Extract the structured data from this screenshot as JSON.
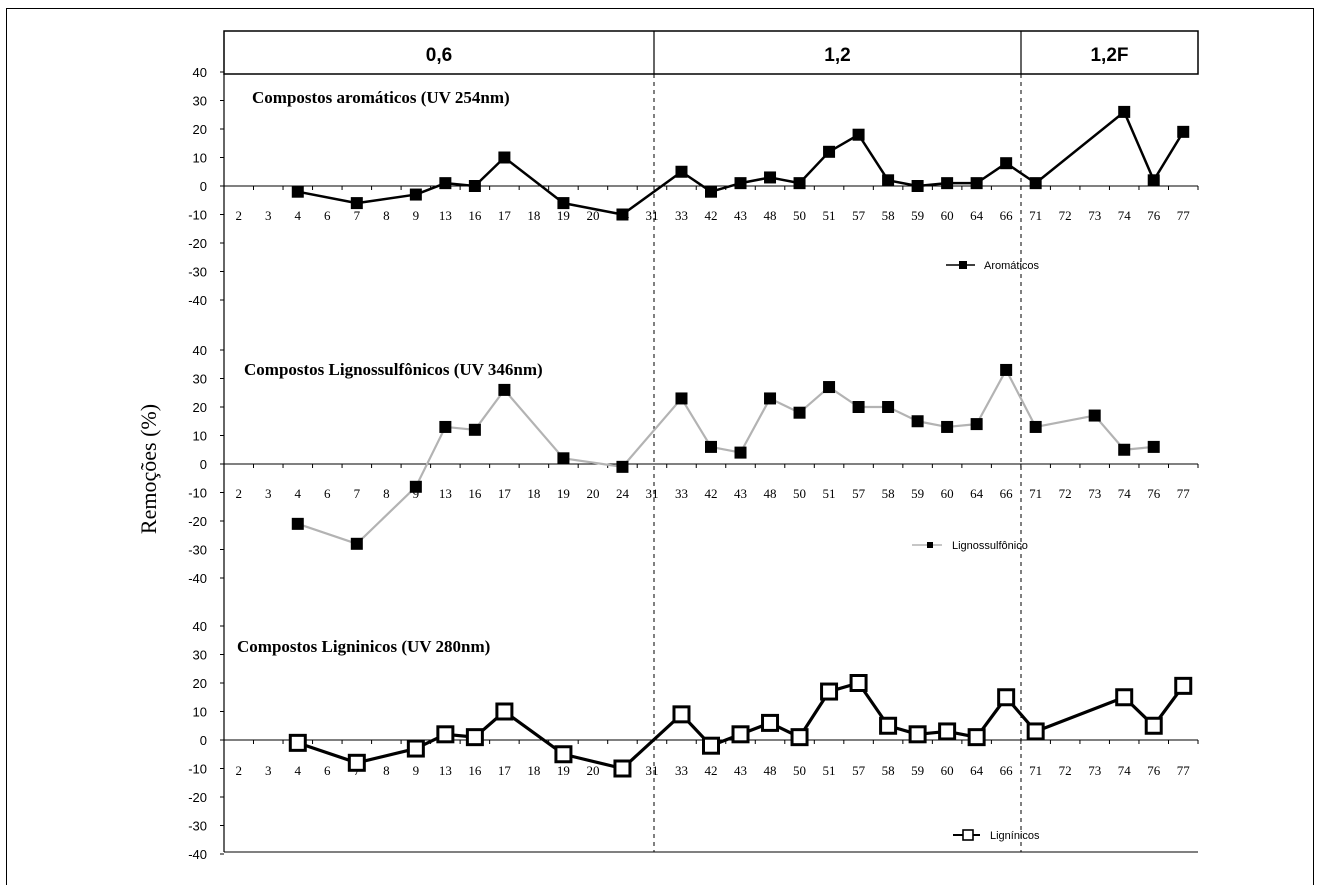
{
  "chart_data": {
    "type": "line",
    "ylabel": "Remoções (%)",
    "phases": [
      "0,6",
      "1,2",
      "1,2F"
    ],
    "categories": [
      "2",
      "3",
      "4",
      "6",
      "7",
      "8",
      "9",
      "13",
      "16",
      "17",
      "18",
      "19",
      "20",
      "24",
      "31",
      "33",
      "42",
      "43",
      "48",
      "50",
      "51",
      "57",
      "58",
      "59",
      "60",
      "64",
      "66",
      "71",
      "72",
      "73",
      "74",
      "76",
      "77"
    ],
    "panels": [
      {
        "title": "Compostos aromáticos (UV 254nm)",
        "ylim": [
          -40,
          40
        ],
        "yticks": [
          40,
          30,
          20,
          10,
          0,
          -10,
          -20,
          -30,
          -40
        ],
        "x_categories": [
          "2",
          "3",
          "4",
          "6",
          "7",
          "8",
          "9",
          "13",
          "16",
          "17",
          "18",
          "19",
          "20",
          "24",
          "31",
          "33",
          "42",
          "43",
          "48",
          "50",
          "51",
          "57",
          "58",
          "59",
          "60",
          "64",
          "66",
          "71",
          "72",
          "73",
          "74",
          "76",
          "77"
        ],
        "series": [
          {
            "name": "Aromáticos",
            "color": "#000000",
            "marker": "filled-square",
            "points": [
              {
                "x": "4",
                "y": -2
              },
              {
                "x": "7",
                "y": -6
              },
              {
                "x": "9",
                "y": -3
              },
              {
                "x": "13",
                "y": 1
              },
              {
                "x": "16",
                "y": 0
              },
              {
                "x": "17",
                "y": 10
              },
              {
                "x": "19",
                "y": -6
              },
              {
                "x": "24",
                "y": -10
              },
              {
                "x": "33",
                "y": 5
              },
              {
                "x": "42",
                "y": -2
              },
              {
                "x": "43",
                "y": 1
              },
              {
                "x": "48",
                "y": 3
              },
              {
                "x": "50",
                "y": 1
              },
              {
                "x": "51",
                "y": 12
              },
              {
                "x": "57",
                "y": 18
              },
              {
                "x": "58",
                "y": 2
              },
              {
                "x": "59",
                "y": 0
              },
              {
                "x": "60",
                "y": 1
              },
              {
                "x": "64",
                "y": 1
              },
              {
                "x": "66",
                "y": 8
              },
              {
                "x": "71",
                "y": 1
              },
              {
                "x": "74",
                "y": 26
              },
              {
                "x": "76",
                "y": 2
              },
              {
                "x": "77",
                "y": 19
              }
            ]
          }
        ]
      },
      {
        "title": "Compostos Lignossulfônicos (UV 346nm)",
        "ylim": [
          -40,
          40
        ],
        "yticks": [
          40,
          30,
          20,
          10,
          0,
          -10,
          -20,
          -30,
          -40
        ],
        "x_categories": [
          "2",
          "3",
          "4",
          "6",
          "7",
          "8",
          "9",
          "13",
          "16",
          "17",
          "18",
          "19",
          "20",
          "24",
          "31",
          "33",
          "42",
          "43",
          "48",
          "50",
          "51",
          "57",
          "58",
          "59",
          "60",
          "64",
          "66",
          "71",
          "72",
          "73",
          "74",
          "76",
          "77"
        ],
        "series": [
          {
            "name": "Lignossulfônico",
            "color": "#b3b3b3",
            "marker": "filled-square",
            "points": [
              {
                "x": "4",
                "y": -21
              },
              {
                "x": "7",
                "y": -28
              },
              {
                "x": "9",
                "y": -8
              },
              {
                "x": "13",
                "y": 13
              },
              {
                "x": "16",
                "y": 12
              },
              {
                "x": "17",
                "y": 26
              },
              {
                "x": "19",
                "y": 2
              },
              {
                "x": "24",
                "y": -1
              },
              {
                "x": "33",
                "y": 23
              },
              {
                "x": "42",
                "y": 6
              },
              {
                "x": "43",
                "y": 4
              },
              {
                "x": "48",
                "y": 23
              },
              {
                "x": "50",
                "y": 18
              },
              {
                "x": "51",
                "y": 27
              },
              {
                "x": "57",
                "y": 20
              },
              {
                "x": "58",
                "y": 20
              },
              {
                "x": "59",
                "y": 15
              },
              {
                "x": "60",
                "y": 13
              },
              {
                "x": "64",
                "y": 14
              },
              {
                "x": "66",
                "y": 33
              },
              {
                "x": "71",
                "y": 13
              },
              {
                "x": "73",
                "y": 17
              },
              {
                "x": "74",
                "y": 5
              },
              {
                "x": "76",
                "y": 6
              }
            ]
          }
        ]
      },
      {
        "title": "Compostos Ligninicos (UV 280nm)",
        "ylim": [
          -40,
          40
        ],
        "yticks": [
          40,
          30,
          20,
          10,
          0,
          -10,
          -20,
          -30,
          -40
        ],
        "x_categories": [
          "2",
          "3",
          "4",
          "6",
          "7",
          "8",
          "9",
          "13",
          "16",
          "17",
          "18",
          "19",
          "20",
          "24",
          "31",
          "33",
          "42",
          "43",
          "48",
          "50",
          "51",
          "57",
          "58",
          "59",
          "60",
          "64",
          "66",
          "71",
          "72",
          "73",
          "74",
          "76",
          "77"
        ],
        "series": [
          {
            "name": "Lignínicos",
            "color": "#000000",
            "marker": "open-square",
            "points": [
              {
                "x": "4",
                "y": -1
              },
              {
                "x": "7",
                "y": -8
              },
              {
                "x": "9",
                "y": -3
              },
              {
                "x": "13",
                "y": 2
              },
              {
                "x": "16",
                "y": 1
              },
              {
                "x": "17",
                "y": 10
              },
              {
                "x": "19",
                "y": -5
              },
              {
                "x": "24",
                "y": -10
              },
              {
                "x": "33",
                "y": 9
              },
              {
                "x": "42",
                "y": -2
              },
              {
                "x": "43",
                "y": 2
              },
              {
                "x": "48",
                "y": 6
              },
              {
                "x": "50",
                "y": 1
              },
              {
                "x": "51",
                "y": 17
              },
              {
                "x": "57",
                "y": 20
              },
              {
                "x": "58",
                "y": 5
              },
              {
                "x": "59",
                "y": 2
              },
              {
                "x": "60",
                "y": 3
              },
              {
                "x": "64",
                "y": 1
              },
              {
                "x": "66",
                "y": 15
              },
              {
                "x": "71",
                "y": 3
              },
              {
                "x": "74",
                "y": 15
              },
              {
                "x": "76",
                "y": 5
              },
              {
                "x": "77",
                "y": 19
              }
            ]
          }
        ]
      }
    ]
  }
}
